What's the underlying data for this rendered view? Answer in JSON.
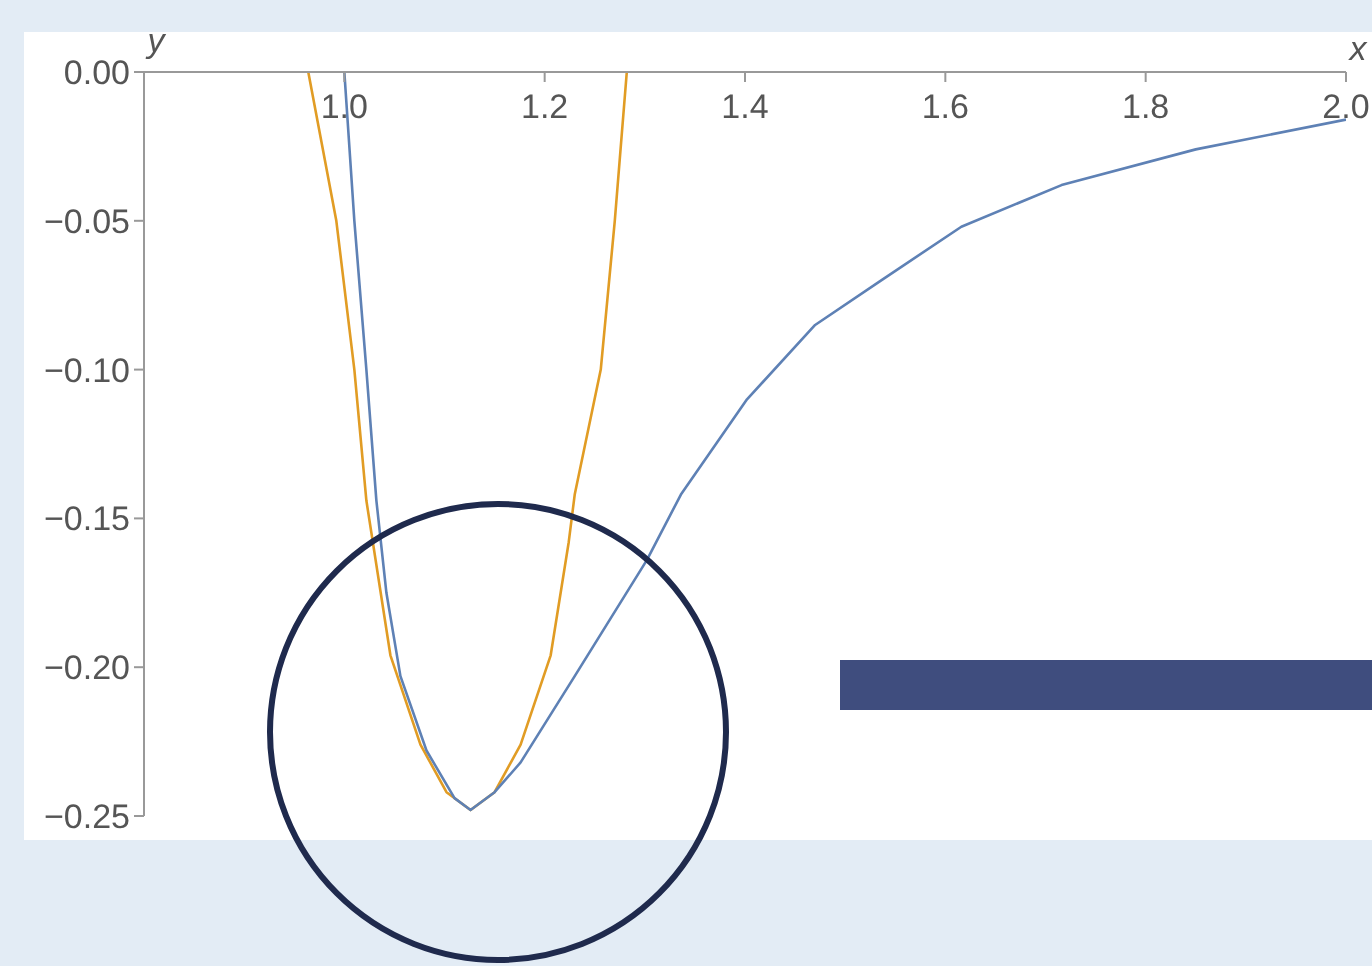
{
  "chart_data": {
    "type": "line",
    "xlabel": "x",
    "ylabel": "y",
    "xlim": [
      0.8,
      2.0
    ],
    "ylim": [
      -0.25,
      0
    ],
    "xticks": [
      {
        "value": 1.0,
        "label": "1.0"
      },
      {
        "value": 1.2,
        "label": "1.2"
      },
      {
        "value": 1.4,
        "label": "1.4"
      },
      {
        "value": 1.6,
        "label": "1.6"
      },
      {
        "value": 1.8,
        "label": "1.8"
      },
      {
        "value": 2.0,
        "label": "2.0"
      }
    ],
    "yticks": [
      {
        "value": 0,
        "label": "0.00"
      },
      {
        "value": -0.05,
        "label": "−0.05"
      },
      {
        "value": -0.1,
        "label": "−0.10"
      },
      {
        "value": -0.15,
        "label": "−0.15"
      },
      {
        "value": -0.2,
        "label": "−0.20"
      },
      {
        "value": -0.25,
        "label": "−0.25"
      }
    ],
    "series": [
      {
        "color": "#5e81b5",
        "x": [
          1.0,
          1.01,
          1.022,
          1.032,
          1.042,
          1.056,
          1.082,
          1.11,
          1.126,
          1.15,
          1.176,
          1.23,
          1.302,
          1.336,
          1.402,
          1.47,
          1.536,
          1.616,
          1.716,
          1.85,
          2.0
        ],
        "values": [
          0,
          -0.05,
          -0.1,
          -0.144,
          -0.175,
          -0.203,
          -0.228,
          -0.244,
          -0.248,
          -0.242,
          -0.232,
          -0.203,
          -0.164,
          -0.142,
          -0.11,
          -0.085,
          -0.07,
          -0.052,
          -0.038,
          -0.026,
          -0.016
        ]
      },
      {
        "color": "#e19c24",
        "x": [
          0.964,
          0.992,
          1.01,
          1.022,
          1.046,
          1.076,
          1.102,
          1.126,
          1.15,
          1.176,
          1.206,
          1.224,
          1.23,
          1.256,
          1.27,
          1.282
        ],
        "values": [
          0,
          -0.05,
          -0.1,
          -0.144,
          -0.196,
          -0.226,
          -0.242,
          -0.248,
          -0.242,
          -0.226,
          -0.196,
          -0.158,
          -0.142,
          -0.1,
          -0.05,
          0
        ]
      }
    ]
  }
}
